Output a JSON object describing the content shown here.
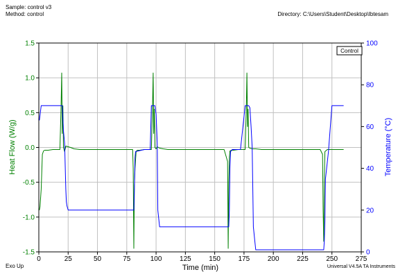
{
  "header": {
    "sample": "Sample: control v3",
    "method": "Method: control",
    "directory": "Directory: C:\\Users\\Student\\Desktop\\Ibtesam"
  },
  "footer": {
    "left": "Exo Up",
    "right": "Universal V4.5A TA Instruments"
  },
  "colors": {
    "heat_flow": "#008000",
    "temperature": "#0000ff",
    "grid": "#c0c0c0"
  },
  "chart_data": {
    "type": "line",
    "title": "",
    "xlabel": "Time (min)",
    "ylabel_left": "Heat Flow (W/g)",
    "ylabel_right": "Temperature (°C)",
    "xlim": [
      0,
      275
    ],
    "ylim_left": [
      -1.5,
      1.5
    ],
    "ylim_right": [
      0,
      100
    ],
    "x_ticks": [
      "0",
      "25",
      "50",
      "75",
      "100",
      "125",
      "150",
      "175",
      "200",
      "225",
      "250",
      "275"
    ],
    "y_left_ticks": [
      "-1.5",
      "-1.0",
      "-0.5",
      "0.0",
      "0.5",
      "1.0",
      "1.5"
    ],
    "y_right_ticks": [
      "0",
      "20",
      "40",
      "60",
      "80",
      "100"
    ],
    "grid": true,
    "legend": {
      "position": "top-right",
      "entries": [
        "Control"
      ]
    },
    "series": [
      {
        "name": "Heat Flow",
        "axis": "left",
        "color": "#008000",
        "x": [
          0.5,
          1,
          2,
          3,
          4,
          5,
          8,
          12,
          16,
          18,
          19,
          19.5,
          20,
          20.5,
          21,
          22,
          23,
          25,
          27,
          30,
          35,
          40,
          50,
          60,
          70,
          78,
          80,
          80.5,
          81,
          81.5,
          82,
          83,
          84,
          86,
          90,
          95,
          96,
          97,
          97.5,
          98,
          98.5,
          99,
          100,
          101,
          103,
          106,
          110,
          120,
          130,
          140,
          150,
          158,
          161,
          161.5,
          162,
          162.5,
          163,
          164,
          166,
          170,
          176,
          177,
          177.5,
          178,
          178.5,
          179,
          180,
          182,
          185,
          190,
          200,
          210,
          220,
          230,
          240,
          242,
          242.5,
          243,
          243.5,
          244,
          246,
          250,
          255,
          260
        ],
        "y": [
          -0.9,
          -0.85,
          -0.6,
          -0.1,
          -0.05,
          -0.04,
          -0.04,
          -0.03,
          -0.03,
          -0.03,
          0.6,
          1.07,
          0.2,
          0.6,
          0.0,
          -0.06,
          0.02,
          0.01,
          0.0,
          -0.02,
          -0.03,
          -0.03,
          -0.03,
          -0.03,
          -0.03,
          -0.03,
          -0.03,
          -0.3,
          -1.45,
          -0.55,
          -0.3,
          -0.06,
          -0.04,
          -0.04,
          -0.03,
          -0.03,
          -0.03,
          0.6,
          1.07,
          0.2,
          0.55,
          0.0,
          -0.02,
          0.01,
          -0.01,
          -0.02,
          -0.03,
          -0.03,
          -0.03,
          -0.03,
          -0.03,
          -0.03,
          -0.2,
          -1.45,
          -0.5,
          -0.15,
          -0.05,
          -0.04,
          -0.04,
          -0.03,
          -0.03,
          0.6,
          1.07,
          0.3,
          0.55,
          0.0,
          -0.01,
          -0.02,
          -0.02,
          -0.03,
          -0.03,
          -0.03,
          -0.03,
          -0.03,
          -0.03,
          -0.1,
          -0.9,
          -1.35,
          -0.5,
          -0.06,
          -0.03,
          -0.03,
          -0.03,
          -0.03
        ]
      },
      {
        "name": "Temperature",
        "axis": "right",
        "color": "#0000ff",
        "x": [
          0.5,
          2,
          20,
          21,
          22,
          23,
          23.5,
          24,
          25,
          27,
          81,
          81.5,
          82,
          82.5,
          90,
          95,
          96,
          99,
          100,
          101,
          101.5,
          103,
          162,
          162.5,
          163,
          163.5,
          165,
          172,
          176,
          179,
          180,
          181,
          182,
          183,
          185,
          243,
          243.5,
          244,
          244.5,
          247,
          250,
          260
        ],
        "y": [
          63,
          70,
          70,
          58,
          52,
          30,
          24,
          22,
          20,
          20,
          20,
          30,
          45,
          48,
          49,
          49,
          70,
          70,
          66,
          52,
          20,
          12,
          12,
          20,
          40,
          48,
          49,
          49,
          70,
          70,
          69,
          60,
          50,
          12,
          1,
          1,
          5,
          15,
          35,
          48,
          70,
          70
        ]
      }
    ]
  }
}
